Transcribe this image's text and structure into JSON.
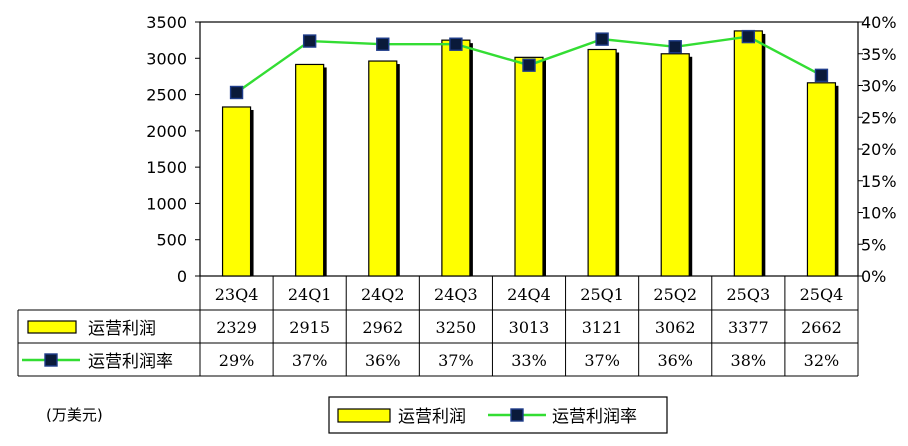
{
  "chart_data": {
    "type": "bar",
    "categories": [
      "23Q4",
      "24Q1",
      "24Q2",
      "24Q3",
      "24Q4",
      "25Q1",
      "25Q2",
      "25Q3",
      "25Q4"
    ],
    "series": [
      {
        "name": "运营利润",
        "type": "bar",
        "axis": "left",
        "values": [
          2329,
          2915,
          2962,
          3250,
          3013,
          3121,
          3062,
          3377,
          2662
        ],
        "color": "#ffff00"
      },
      {
        "name": "运营利润率",
        "type": "line",
        "axis": "right",
        "values": [
          29,
          37,
          36,
          37,
          33,
          37,
          36,
          38,
          32
        ],
        "labels": [
          "29%",
          "37%",
          "36%",
          "37%",
          "33%",
          "37%",
          "36%",
          "38%",
          "32%"
        ],
        "values_plotted": [
          28.9,
          37.0,
          36.5,
          36.5,
          33.2,
          37.3,
          36.1,
          37.7,
          31.6
        ],
        "color": "#33dd33",
        "marker_color": "#0a1a3a"
      }
    ],
    "ylim": [
      0,
      3500
    ],
    "yticks": [
      "0",
      "500",
      "1000",
      "1500",
      "2000",
      "2500",
      "3000",
      "3500"
    ],
    "y2lim": [
      0,
      40
    ],
    "y2ticks": [
      "0%",
      "5%",
      "10%",
      "15%",
      "20%",
      "25%",
      "30%",
      "35%",
      "40%"
    ],
    "grid": false,
    "unit_label": "(万美元)",
    "legend_position": "bottom",
    "data_table": true
  }
}
